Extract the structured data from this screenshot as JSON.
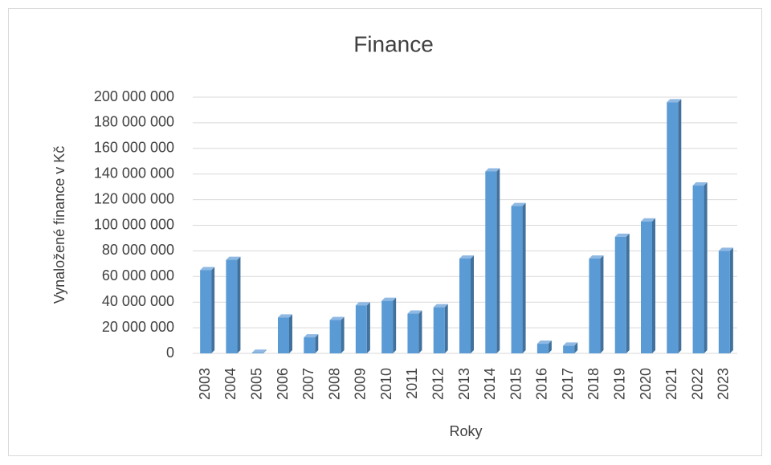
{
  "chart_data": {
    "type": "bar",
    "title": "Finance",
    "x_label": "Roky",
    "y_label": "Vynaložené finance v Kč",
    "categories": [
      "2003",
      "2004",
      "2005",
      "2006",
      "2007",
      "2008",
      "2009",
      "2010",
      "2011",
      "2012",
      "2013",
      "2014",
      "2015",
      "2016",
      "2017",
      "2018",
      "2019",
      "2020",
      "2021",
      "2022",
      "2023"
    ],
    "values": [
      65000000,
      73000000,
      500000,
      28000000,
      12500000,
      26000000,
      37500000,
      41000000,
      31000000,
      36000000,
      74000000,
      142000000,
      115000000,
      7500000,
      6000000,
      74000000,
      91000000,
      103000000,
      196000000,
      131000000,
      80000000
    ],
    "color": "#5b9bd5",
    "ylim": [
      0,
      200000000
    ],
    "yticks": [
      0,
      {
        "value": 20000000,
        "label": "20 000 000"
      },
      {
        "value": 40000000,
        "label": "40 000 000"
      },
      {
        "value": 60000000,
        "label": "60 000 000"
      },
      {
        "value": 80000000,
        "label": "80 000 000"
      },
      {
        "value": 100000000,
        "label": "100 000 000"
      },
      {
        "value": 120000000,
        "label": "120 000 000"
      },
      {
        "value": 140000000,
        "label": "140 000 000"
      },
      {
        "value": 160000000,
        "label": "160 000 000"
      },
      {
        "value": 180000000,
        "label": "180 000 000"
      },
      {
        "value": 200000000,
        "label": "200 000 000"
      }
    ],
    "grid": true
  }
}
